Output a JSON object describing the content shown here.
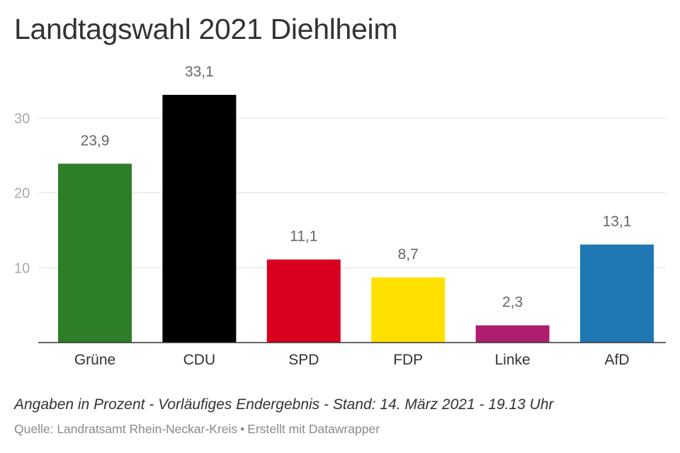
{
  "chart_data": {
    "type": "bar",
    "title": "Landtagswahl 2021 Diehlheim",
    "categories": [
      "Grüne",
      "CDU",
      "SPD",
      "FDP",
      "Linke",
      "AfD"
    ],
    "values": [
      23.9,
      33.1,
      11.1,
      8.7,
      2.3,
      13.1
    ],
    "value_labels": [
      "23,9",
      "33,1",
      "11,1",
      "8,7",
      "2,3",
      "13,1"
    ],
    "colors": [
      "#2e7d28",
      "#000000",
      "#d9001f",
      "#ffe000",
      "#ae1e6f",
      "#1f77b4"
    ],
    "yticks": [
      10,
      20,
      30
    ],
    "ylim": [
      0,
      33.1
    ],
    "grid": true,
    "xlabel": "",
    "ylabel": ""
  },
  "notes": "Angaben in Prozent - Vorläufiges Endergebnis - Stand: 14. März 2021 - 19.13 Uhr",
  "source": {
    "prefix": "Quelle:",
    "name": "Landratsamt Rhein-Neckar-Kreis",
    "separator": "•",
    "credit": "Erstellt mit Datawrapper"
  }
}
